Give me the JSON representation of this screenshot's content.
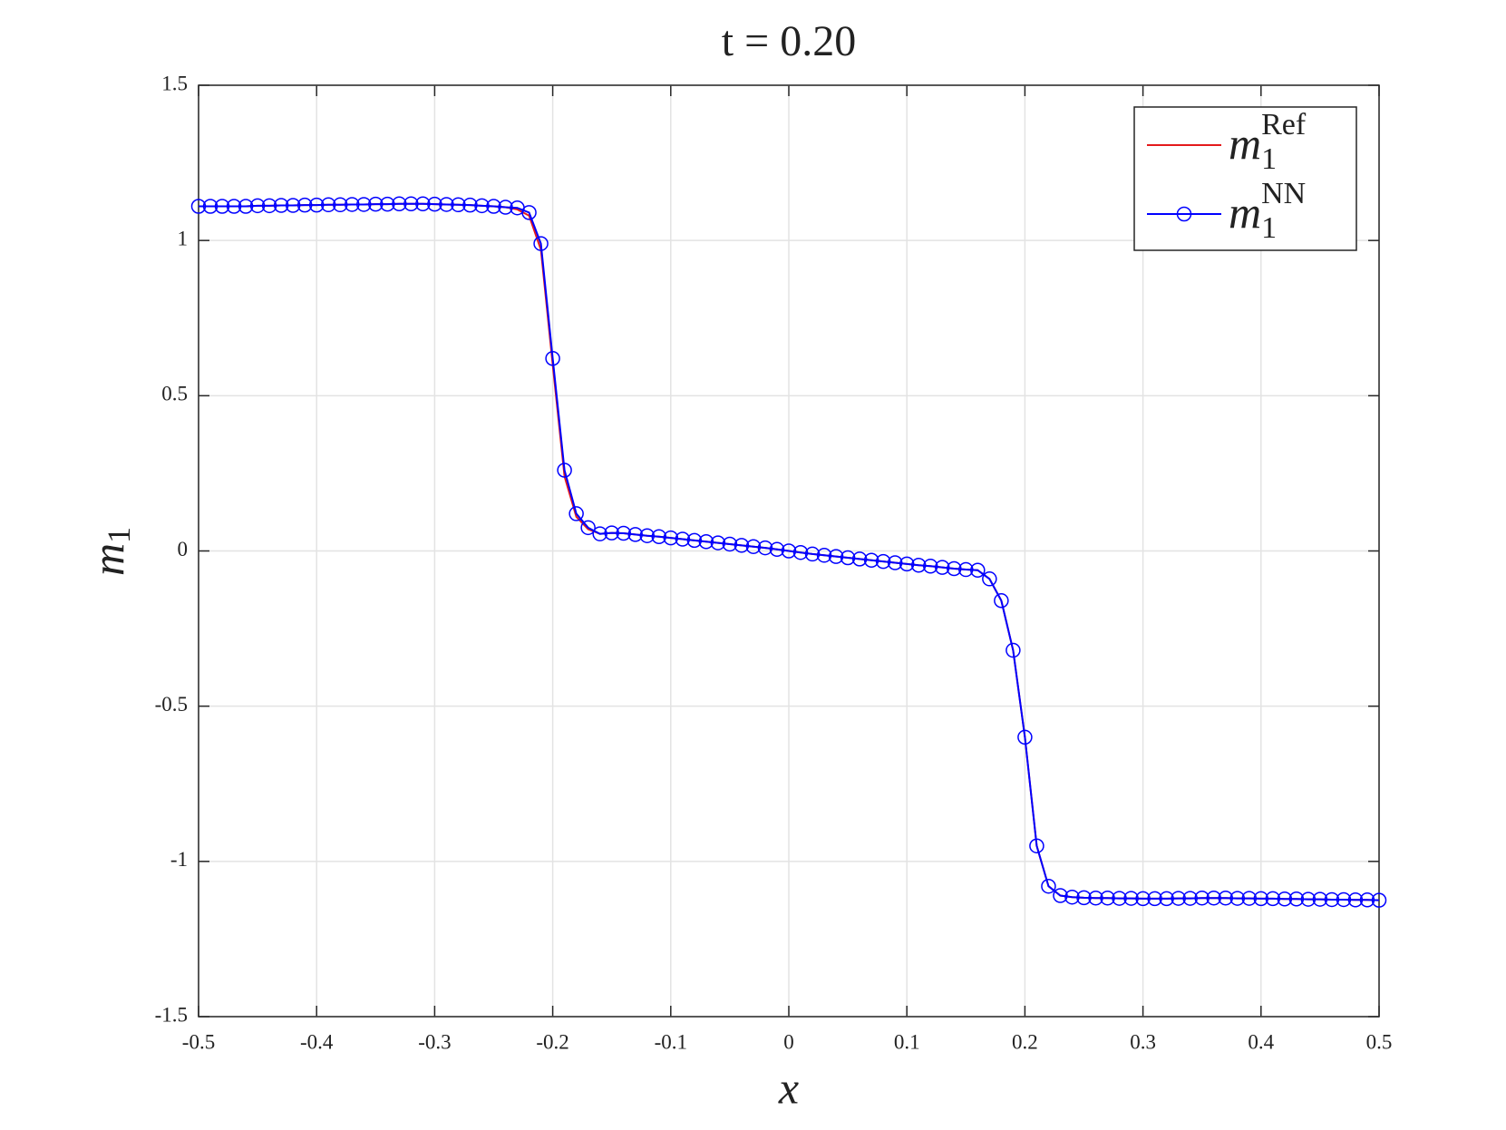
{
  "chart_data": {
    "type": "line",
    "title": "t = 0.20",
    "xlabel": "x",
    "ylabel": {
      "main": "m",
      "sub": "1"
    },
    "x": [
      -0.5,
      -0.49,
      -0.48,
      -0.47,
      -0.46,
      -0.45,
      -0.44,
      -0.43,
      -0.42,
      -0.41,
      -0.4,
      -0.39,
      -0.38,
      -0.37,
      -0.36,
      -0.35,
      -0.34,
      -0.33,
      -0.32,
      -0.31,
      -0.3,
      -0.29,
      -0.28,
      -0.27,
      -0.26,
      -0.25,
      -0.24,
      -0.23,
      -0.22,
      -0.21,
      -0.2,
      -0.19,
      -0.18,
      -0.17,
      -0.16,
      -0.15,
      -0.14,
      -0.13,
      -0.12,
      -0.11,
      -0.1,
      -0.09,
      -0.08,
      -0.07,
      -0.06,
      -0.05,
      -0.04,
      -0.03,
      -0.02,
      -0.01,
      0,
      0.01,
      0.02,
      0.03,
      0.04,
      0.05,
      0.06,
      0.07,
      0.08,
      0.09,
      0.1,
      0.11,
      0.12,
      0.13,
      0.14,
      0.15,
      0.16,
      0.17,
      0.18,
      0.19,
      0.2,
      0.21,
      0.22,
      0.23,
      0.24,
      0.25,
      0.26,
      0.27,
      0.28,
      0.29,
      0.3,
      0.31,
      0.32,
      0.33,
      0.34,
      0.35,
      0.36,
      0.37,
      0.38,
      0.39,
      0.4,
      0.41,
      0.42,
      0.43,
      0.44,
      0.45,
      0.46,
      0.47,
      0.48,
      0.49,
      0.5
    ],
    "series": [
      {
        "name": {
          "main": "m",
          "sub": "1",
          "sup": "Ref"
        },
        "color": "#e41a1c",
        "marker": false,
        "values": [
          1.11,
          1.11,
          1.11,
          1.11,
          1.11,
          1.112,
          1.112,
          1.113,
          1.113,
          1.114,
          1.114,
          1.115,
          1.115,
          1.116,
          1.116,
          1.117,
          1.117,
          1.118,
          1.118,
          1.118,
          1.117,
          1.116,
          1.115,
          1.114,
          1.112,
          1.11,
          1.107,
          1.1,
          1.08,
          0.97,
          0.6,
          0.24,
          0.11,
          0.07,
          0.055,
          0.058,
          0.057,
          0.053,
          0.049,
          0.046,
          0.042,
          0.038,
          0.034,
          0.03,
          0.026,
          0.022,
          0.018,
          0.014,
          0.01,
          0.005,
          0,
          -0.005,
          -0.01,
          -0.014,
          -0.018,
          -0.022,
          -0.026,
          -0.03,
          -0.034,
          -0.038,
          -0.042,
          -0.046,
          -0.049,
          -0.053,
          -0.057,
          -0.06,
          -0.062,
          -0.09,
          -0.16,
          -0.32,
          -0.6,
          -0.95,
          -1.08,
          -1.11,
          -1.115,
          -1.117,
          -1.118,
          -1.118,
          -1.119,
          -1.119,
          -1.12,
          -1.12,
          -1.12,
          -1.119,
          -1.119,
          -1.118,
          -1.118,
          -1.118,
          -1.119,
          -1.119,
          -1.12,
          -1.12,
          -1.121,
          -1.121,
          -1.122,
          -1.122,
          -1.123,
          -1.123,
          -1.124,
          -1.124,
          -1.125
        ]
      },
      {
        "name": {
          "main": "m",
          "sub": "1",
          "sup": "NN"
        },
        "color": "#0000ff",
        "marker": true,
        "values": [
          1.11,
          1.11,
          1.11,
          1.11,
          1.11,
          1.112,
          1.112,
          1.113,
          1.113,
          1.114,
          1.114,
          1.115,
          1.115,
          1.116,
          1.116,
          1.117,
          1.117,
          1.118,
          1.118,
          1.118,
          1.117,
          1.116,
          1.115,
          1.114,
          1.112,
          1.11,
          1.107,
          1.105,
          1.09,
          0.99,
          0.62,
          0.26,
          0.12,
          0.075,
          0.055,
          0.058,
          0.057,
          0.053,
          0.049,
          0.046,
          0.042,
          0.038,
          0.034,
          0.03,
          0.026,
          0.022,
          0.018,
          0.014,
          0.01,
          0.005,
          0,
          -0.005,
          -0.01,
          -0.014,
          -0.018,
          -0.022,
          -0.026,
          -0.03,
          -0.034,
          -0.038,
          -0.042,
          -0.046,
          -0.049,
          -0.053,
          -0.057,
          -0.06,
          -0.062,
          -0.09,
          -0.16,
          -0.32,
          -0.6,
          -0.95,
          -1.08,
          -1.11,
          -1.115,
          -1.117,
          -1.118,
          -1.118,
          -1.119,
          -1.119,
          -1.12,
          -1.12,
          -1.12,
          -1.119,
          -1.119,
          -1.118,
          -1.118,
          -1.118,
          -1.119,
          -1.119,
          -1.12,
          -1.12,
          -1.121,
          -1.121,
          -1.122,
          -1.122,
          -1.123,
          -1.123,
          -1.124,
          -1.124,
          -1.125
        ]
      }
    ],
    "xlim": [
      -0.5,
      0.5
    ],
    "xticks": [
      -0.5,
      -0.4,
      -0.3,
      -0.2,
      -0.1,
      0,
      0.1,
      0.2,
      0.3,
      0.4,
      0.5
    ],
    "ylim": [
      -1.5,
      1.5
    ],
    "yticks": [
      -1.5,
      -1,
      -0.5,
      0,
      0.5,
      1,
      1.5
    ],
    "grid": true,
    "legend": "upper right"
  }
}
